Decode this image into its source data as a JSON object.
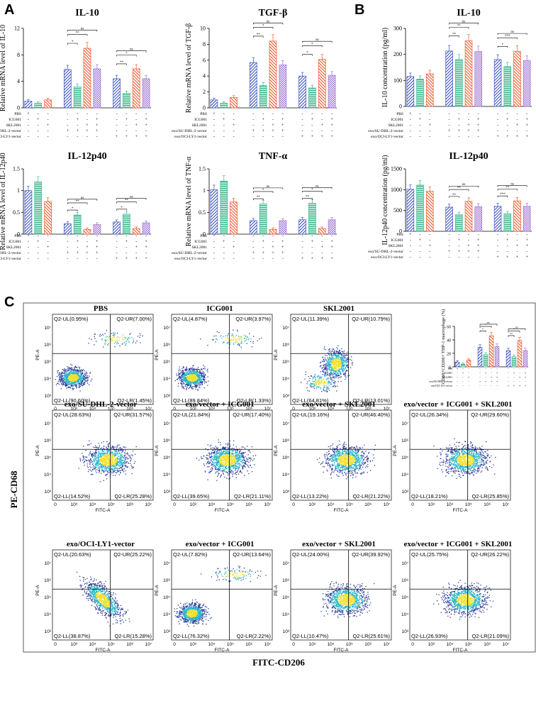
{
  "panels": {
    "a": "A",
    "b": "B",
    "c": "C"
  },
  "colors": {
    "blue": "#3f55c0",
    "green": "#3cb88d",
    "orange": "#ee5a2f",
    "purple": "#9b6fd0",
    "cell_low": "#2a3b9b",
    "cell_mid": "#29b5c8",
    "cell_high": "#f3e02c"
  },
  "conditions": {
    "rows_a": [
      "PBS",
      "ICG001",
      "SKL2001",
      "exo/SU-DHL-2-vector",
      "exo/OCI-LY1-vector"
    ],
    "symbols": [
      [
        "+",
        "-",
        "-",
        "-",
        "-",
        "-",
        "-",
        "-",
        "-",
        "-",
        "-"
      ],
      [
        "-",
        "+",
        "-",
        "-",
        "+",
        "-",
        "+",
        "-",
        "+",
        "-",
        "+"
      ],
      [
        "-",
        "-",
        "+",
        "-",
        "-",
        "+",
        "+",
        "-",
        "-",
        "+",
        "+"
      ],
      [
        "-",
        "-",
        "-",
        "+",
        "+",
        "+",
        "+",
        "-",
        "-",
        "-",
        "-"
      ],
      [
        "-",
        "-",
        "-",
        "-",
        "-",
        "-",
        "-",
        "+",
        "+",
        "+",
        "+"
      ]
    ]
  },
  "chart_data": [
    {
      "type": "bar",
      "panel": "A",
      "title": "IL-10",
      "ylabel": "Relative mRNA level of IL-10",
      "ylim": [
        0,
        12
      ],
      "yticks": [
        0,
        4,
        8,
        12
      ],
      "values": [
        1.0,
        0.7,
        1.2,
        null,
        5.8,
        3.2,
        9.0,
        5.9,
        null,
        4.4,
        2.2,
        5.9,
        4.4
      ],
      "sig": [
        {
          "g": 1,
          "labels": [
            "*",
            "**",
            "**",
            "ns"
          ]
        },
        {
          "g": 2,
          "labels": [
            "**",
            "*",
            "*",
            "ns"
          ]
        }
      ]
    },
    {
      "type": "bar",
      "panel": "A",
      "title": "TGF-β",
      "ylabel": "Relative mRNA level of TGF-β",
      "ylim": [
        0,
        10
      ],
      "yticks": [
        0,
        2,
        4,
        6,
        8,
        10
      ],
      "values": [
        1.0,
        0.6,
        1.3,
        null,
        5.7,
        2.8,
        8.4,
        5.4,
        null,
        4.0,
        2.5,
        6.1,
        4.1
      ],
      "sig": [
        {
          "g": 1,
          "labels": [
            "**",
            "*",
            "*",
            "ns"
          ]
        },
        {
          "g": 2,
          "labels": [
            "*",
            "**",
            "*",
            "ns"
          ]
        }
      ]
    },
    {
      "type": "bar",
      "panel": "B",
      "title": "IL-10",
      "ylabel": "IL-10 concentration (pg/ml)",
      "ylim": [
        0,
        300
      ],
      "yticks": [
        0,
        100,
        200,
        300
      ],
      "values": [
        115,
        105,
        125,
        null,
        213,
        181,
        252,
        211,
        null,
        180,
        153,
        212,
        176
      ],
      "sig": [
        {
          "g": 1,
          "labels": [
            "**",
            "**",
            "**",
            "ns"
          ]
        },
        {
          "g": 2,
          "labels": [
            "*",
            "**",
            "***",
            "ns"
          ]
        }
      ]
    },
    {
      "type": "bar",
      "panel": "A",
      "title": "IL-12p40",
      "ylabel": "Relative mRNA level of IL-12p40",
      "ylim": [
        0,
        1.5
      ],
      "yticks": [
        0.0,
        0.5,
        1.0,
        1.5
      ],
      "values": [
        1.0,
        1.2,
        0.75,
        null,
        0.24,
        0.44,
        0.11,
        0.22,
        null,
        0.28,
        0.46,
        0.13,
        0.26
      ],
      "sig": [
        {
          "g": 1,
          "labels": [
            "*",
            "*",
            "**",
            "ns"
          ]
        },
        {
          "g": 2,
          "labels": [
            "*",
            "*",
            "**",
            "ns"
          ]
        }
      ]
    },
    {
      "type": "bar",
      "panel": "A",
      "title": "TNF-α",
      "ylabel": "Relative mRNA level of TNF-α",
      "ylim": [
        0,
        1.5
      ],
      "yticks": [
        0.0,
        0.5,
        1.0,
        1.5
      ],
      "values": [
        1.02,
        1.22,
        0.74,
        null,
        0.31,
        0.7,
        0.11,
        0.31,
        null,
        0.33,
        0.71,
        0.13,
        0.33
      ],
      "sig": [
        {
          "g": 1,
          "labels": [
            "**",
            "*",
            "*",
            "ns"
          ]
        },
        {
          "g": 2,
          "labels": [
            "**",
            "*",
            "*",
            "ns"
          ]
        }
      ]
    },
    {
      "type": "bar",
      "panel": "B",
      "title": "IL-12p40",
      "ylabel": "IL-12p40 concentration (pg/ml)",
      "ylim": [
        0,
        1500
      ],
      "yticks": [
        0,
        500,
        1000,
        1500
      ],
      "values": [
        1010,
        1110,
        960,
        null,
        580,
        400,
        720,
        590,
        null,
        600,
        420,
        730,
        600
      ],
      "sig": [
        {
          "g": 1,
          "labels": [
            "**",
            "**",
            "**",
            "ns"
          ]
        },
        {
          "g": 2,
          "labels": [
            "***",
            "**",
            "**",
            "ns"
          ]
        }
      ]
    },
    {
      "type": "bar",
      "panel": "C",
      "title": "",
      "ylabel": "CD68+CD206+ THP-1 macrophage (%)",
      "ylim": [
        0,
        60
      ],
      "yticks": [
        0,
        20,
        40,
        60
      ],
      "values": [
        7,
        4,
        10,
        null,
        29,
        18,
        46,
        30,
        null,
        24,
        15,
        39,
        24
      ],
      "sig": [
        {
          "g": 1,
          "labels": [
            "*",
            "*",
            "*",
            "ns"
          ]
        },
        {
          "g": 2,
          "labels": [
            "**",
            "*",
            "*",
            "ns"
          ]
        }
      ]
    }
  ],
  "flow": {
    "ylabel": "PE-A",
    "xlabel": "FITC-A",
    "ytick_labels": [
      "10³",
      "10⁴",
      "10⁵",
      "10⁶",
      "10⁷"
    ],
    "xtick_labels": [
      "0",
      "10³",
      "10⁴",
      "10⁵",
      "10⁶",
      "10⁷"
    ],
    "big_y": "PE-CD68",
    "big_x": "FITC-CD206",
    "plots": [
      {
        "title": "PBS",
        "ul": "Q2-UL(0.95%)",
        "ur": "Q2-UR(7.00%)",
        "ll": "Q2-LL(90.60%)",
        "lr": "Q2-LR(1.45%)",
        "mode": "low"
      },
      {
        "title": "ICG001",
        "ul": "Q2-UL(4.87%)",
        "ur": "Q2-UR(3.97%)",
        "ll": "Q2-LL(89.84%)",
        "lr": "Q2-LR(1.33%)",
        "mode": "low"
      },
      {
        "title": "SKL2001",
        "ul": "Q2-UL(11.39%)",
        "ur": "Q2-UR(10.79%)",
        "ll": "Q2-LL(64.81%)",
        "lr": "Q2-LR(13.01%)",
        "mode": "mid"
      },
      {
        "title": "exo/SU-DHL-2-vector",
        "ul": "Q2-UL(28.63%)",
        "ur": "Q2-UR(31.57%)",
        "ll": "Q2-LL(14.52%)",
        "lr": "Q2-LR(25.28%)",
        "mode": "center"
      },
      {
        "title": "exo/vector + ICG001",
        "ul": "Q2-UL(21.84%)",
        "ur": "Q2-UR(17.40%)",
        "ll": "Q2-LL(39.65%)",
        "lr": "Q2-LR(21.11%)",
        "mode": "center"
      },
      {
        "title": "exo/vector + SKL2001",
        "ul": "Q2-UL(19.16%)",
        "ur": "Q2-UR(46.40%)",
        "ll": "Q2-LL(13.22%)",
        "lr": "Q2-LR(21.22%)",
        "mode": "center"
      },
      {
        "title": "exo/vector + ICG001 + SKL2001",
        "ul": "Q2-UL(26.34%)",
        "ur": "Q2-UR(29.60%)",
        "ll": "Q2-LL(18.21%)",
        "lr": "Q2-LR(25.85%)",
        "mode": "center"
      },
      {
        "title": "exo/OCI-LY1-vector",
        "ul": "Q2-UL(20.63%)",
        "ur": "Q2-UR(25.22%)",
        "ll": "Q2-LL(38.87%)",
        "lr": "Q2-LR(15.28%)",
        "mode": "diag"
      },
      {
        "title": "exo/vector + ICG001",
        "ul": "Q2-UL(7.82%)",
        "ur": "Q2-UR(13.64%)",
        "ll": "Q2-LL(76.32%)",
        "lr": "Q2-LR(2.22%)",
        "mode": "low"
      },
      {
        "title": "exo/vector + SKL2001",
        "ul": "Q2-UL(24.00%)",
        "ur": "Q2-UR(39.92%)",
        "ll": "Q2-LL(10.47%)",
        "lr": "Q2-LR(25.61%)",
        "mode": "center"
      },
      {
        "title": "exo/vector + ICG001 + SKL2001",
        "ul": "Q2-UL(25.75%)",
        "ur": "Q2-UR(26.22%)",
        "ll": "Q2-LL(26.93%)",
        "lr": "Q2-LR(21.09%)",
        "mode": "center"
      }
    ]
  }
}
